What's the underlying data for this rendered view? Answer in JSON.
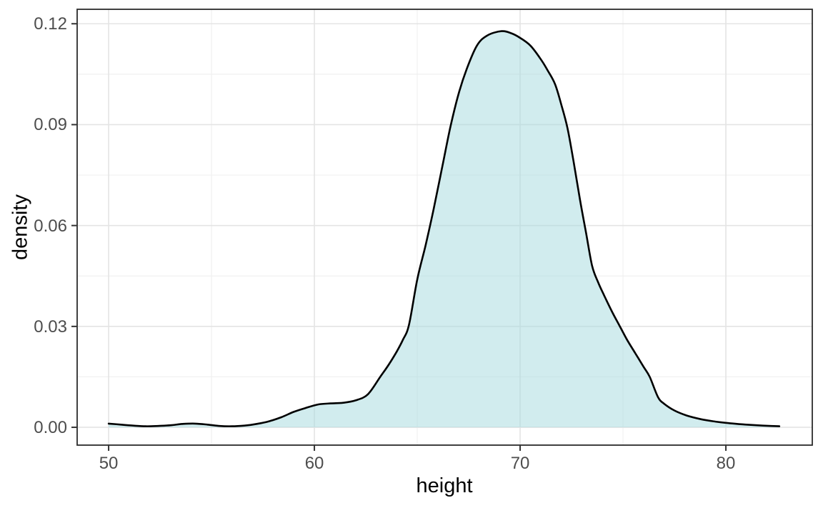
{
  "chart_data": {
    "type": "area",
    "subtype": "density-curve",
    "title": "",
    "xlabel": "height",
    "ylabel": "density",
    "x_ticks": [
      50,
      60,
      70,
      80
    ],
    "x_tick_labels": [
      "50",
      "60",
      "70",
      "80"
    ],
    "x_minor_ticks": [
      55,
      65,
      75
    ],
    "y_ticks": [
      0,
      0.03,
      0.06,
      0.09,
      0.12
    ],
    "y_tick_labels": [
      "0.00",
      "0.03",
      "0.06",
      "0.09",
      "0.12"
    ],
    "y_minor_ticks": [
      0.015,
      0.045,
      0.075,
      0.105
    ],
    "xlim": [
      48.47,
      84.2
    ],
    "ylim": [
      -0.0053,
      0.1243
    ],
    "grid": "on",
    "legend": "none",
    "x": [
      50.0,
      50.6,
      51.2,
      51.8,
      52.4,
      53.0,
      53.6,
      54.2,
      54.8,
      55.4,
      56.0,
      56.6,
      57.2,
      57.8,
      58.4,
      59.0,
      59.6,
      60.2,
      60.8,
      61.4,
      62.0,
      62.6,
      63.2,
      63.6,
      64.0,
      64.3,
      64.6,
      65.0,
      65.4,
      65.8,
      66.2,
      66.6,
      67.0,
      67.4,
      67.9,
      68.4,
      69.1,
      69.6,
      70.0,
      70.5,
      71.0,
      71.35,
      71.7,
      72.0,
      72.3,
      72.6,
      72.9,
      73.2,
      73.5,
      73.8,
      74.1,
      74.5,
      74.85,
      75.2,
      75.6,
      76.0,
      76.3,
      76.7,
      77.0,
      77.5,
      78.1,
      78.8,
      79.5,
      80.2,
      81.0,
      81.8,
      82.6
    ],
    "y": [
      0.0011,
      0.0008,
      0.0005,
      0.0003,
      0.0004,
      0.0006,
      0.001,
      0.0011,
      0.0008,
      0.0004,
      0.0003,
      0.0005,
      0.001,
      0.0018,
      0.003,
      0.0046,
      0.0058,
      0.0068,
      0.0071,
      0.0073,
      0.008,
      0.0098,
      0.015,
      0.0185,
      0.0225,
      0.026,
      0.0305,
      0.044,
      0.054,
      0.065,
      0.077,
      0.089,
      0.099,
      0.1065,
      0.1135,
      0.1165,
      0.1178,
      0.1171,
      0.1158,
      0.1135,
      0.1095,
      0.106,
      0.102,
      0.096,
      0.089,
      0.079,
      0.068,
      0.058,
      0.048,
      0.043,
      0.039,
      0.034,
      0.03,
      0.026,
      0.022,
      0.018,
      0.015,
      0.009,
      0.007,
      0.005,
      0.0035,
      0.0024,
      0.0017,
      0.0012,
      0.0008,
      0.0005,
      0.0003
    ],
    "peak": {
      "x": 69.1,
      "y": 0.1178
    },
    "colors": {
      "curve_stroke": "#000000",
      "area_fill": "#a7dbdf",
      "area_fill_opacity": 0.52,
      "grid_major": "#e4e4e4",
      "grid_minor": "#f0f0f0",
      "panel_border": "#2b2b2b",
      "tick_mark": "#333333",
      "tick_label": "#4d4d4d",
      "axis_title": "#000000",
      "panel_background": "#ffffff"
    }
  }
}
